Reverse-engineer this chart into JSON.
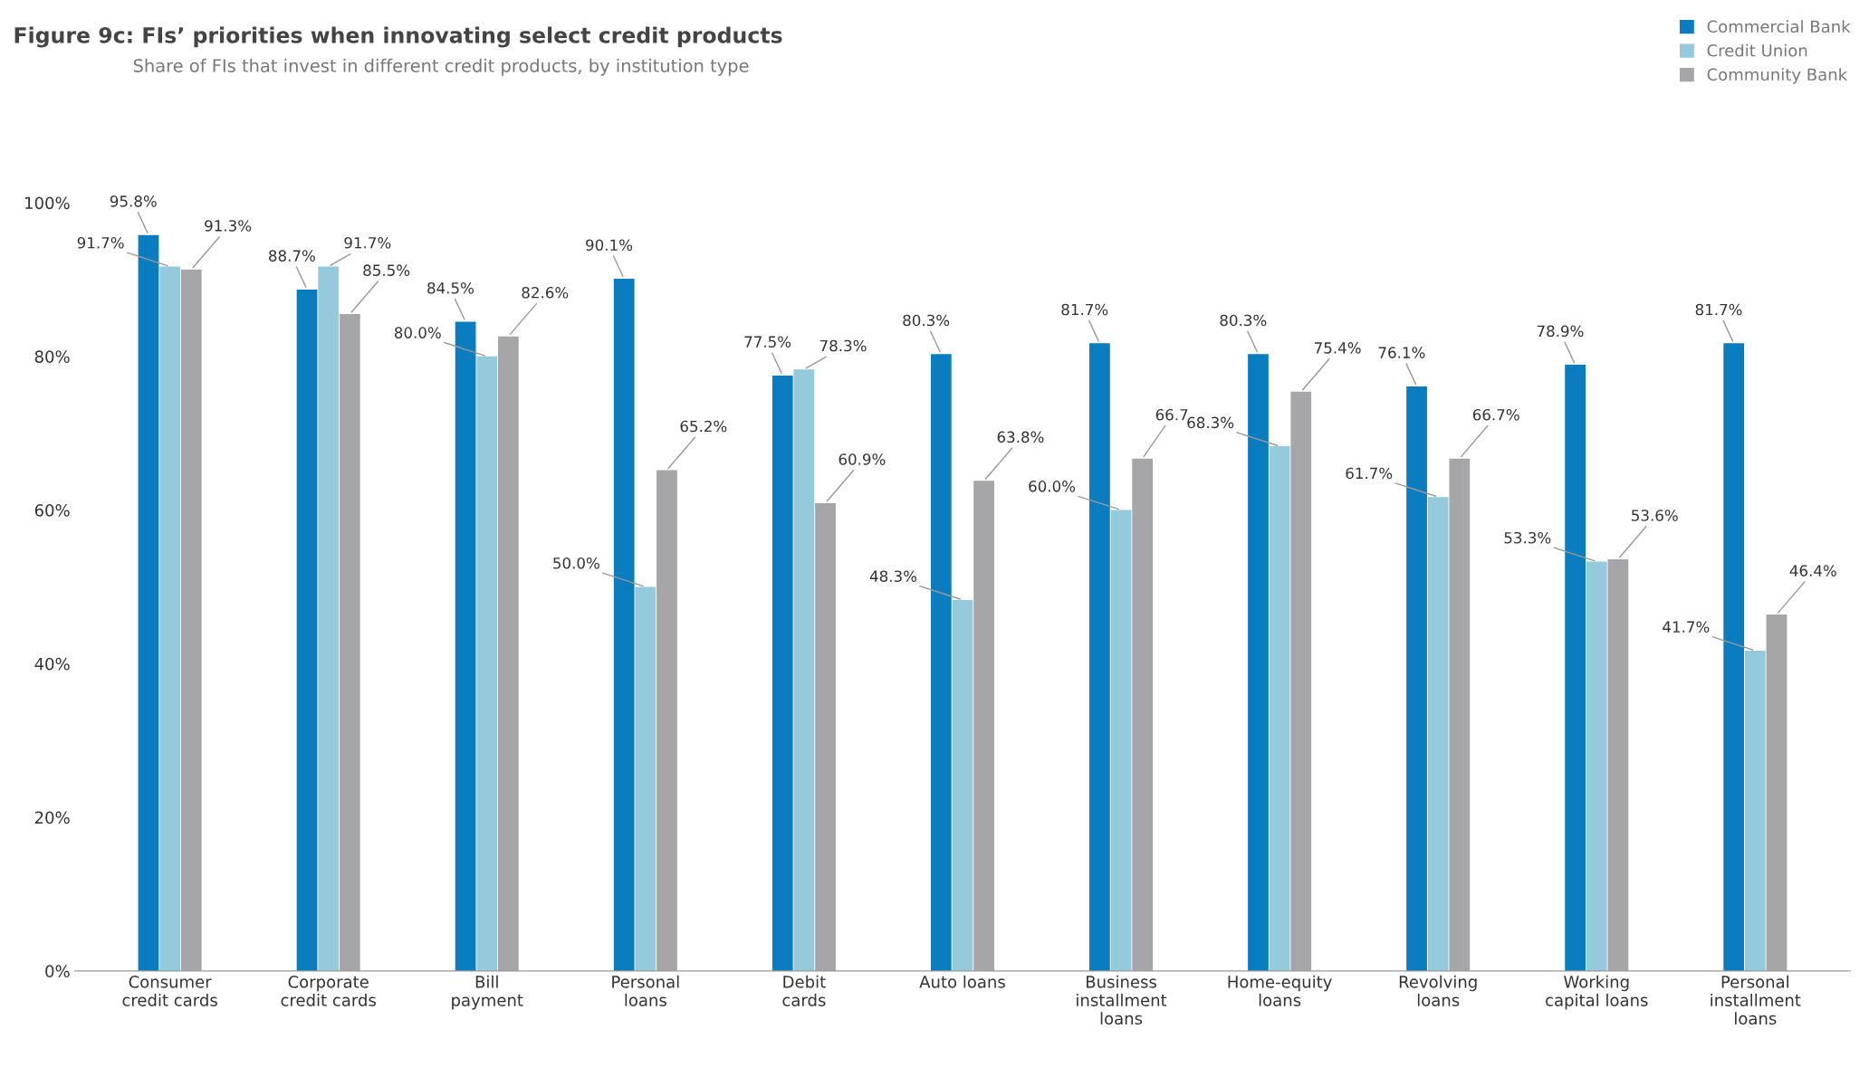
{
  "chart_data": {
    "type": "bar",
    "title": "Figure 9c: FIs’ priorities when innovating select credit products",
    "subtitle": "Share of FIs that invest in different credit products, by institution type",
    "categories": [
      "Consumer\ncredit cards",
      "Corporate\ncredit cards",
      "Bill\npayment",
      "Personal\nloans",
      "Debit\ncards",
      "Auto loans",
      "Business\ninstallment\nloans",
      "Home-equity\nloans",
      "Revolving\nloans",
      "Working\ncapital loans",
      "Personal\ninstallment\nloans"
    ],
    "series": [
      {
        "name": "Commercial Bank",
        "color": "#0a7dc0",
        "values": [
          95.8,
          88.7,
          84.5,
          90.1,
          77.5,
          80.3,
          81.7,
          80.3,
          76.1,
          78.9,
          81.7
        ],
        "value_labels": [
          "95.8%",
          "88.7%",
          "84.5%",
          "90.1%",
          "77.5%",
          "80.3%",
          "81.7%",
          "80.3%",
          "76.1%",
          "78.9%",
          "81.7%"
        ]
      },
      {
        "name": "Credit Union",
        "color": "#95c9dc",
        "values": [
          91.7,
          91.7,
          80.0,
          50.0,
          78.3,
          48.3,
          60.0,
          68.3,
          61.7,
          53.3,
          41.7
        ],
        "value_labels": [
          "91.7%",
          "91.7%",
          "80.0%",
          "50.0%",
          "78.3%",
          "48.3%",
          "60.0%",
          "68.3%",
          "61.7%",
          "53.3%",
          "41.7%"
        ]
      },
      {
        "name": "Community Bank",
        "color": "#a6a6a8",
        "values": [
          91.3,
          85.5,
          82.6,
          65.2,
          60.9,
          63.8,
          66.7,
          75.4,
          66.7,
          53.6,
          46.4
        ],
        "value_labels": [
          "91.3%",
          "85.5%",
          "82.6%",
          "65.2%",
          "60.9%",
          "63.8%",
          "66.7",
          "75.4%",
          "66.7%",
          "53.6%",
          "46.4%"
        ]
      }
    ],
    "ylim": [
      0,
      100
    ],
    "yticks": [
      {
        "value": 0,
        "label": "0%"
      },
      {
        "value": 20,
        "label": "20%"
      },
      {
        "value": 40,
        "label": "40%"
      },
      {
        "value": 60,
        "label": "60%"
      },
      {
        "value": 80,
        "label": "80%"
      },
      {
        "value": 100,
        "label": "100%"
      }
    ],
    "grid": false,
    "legend": "top right"
  }
}
